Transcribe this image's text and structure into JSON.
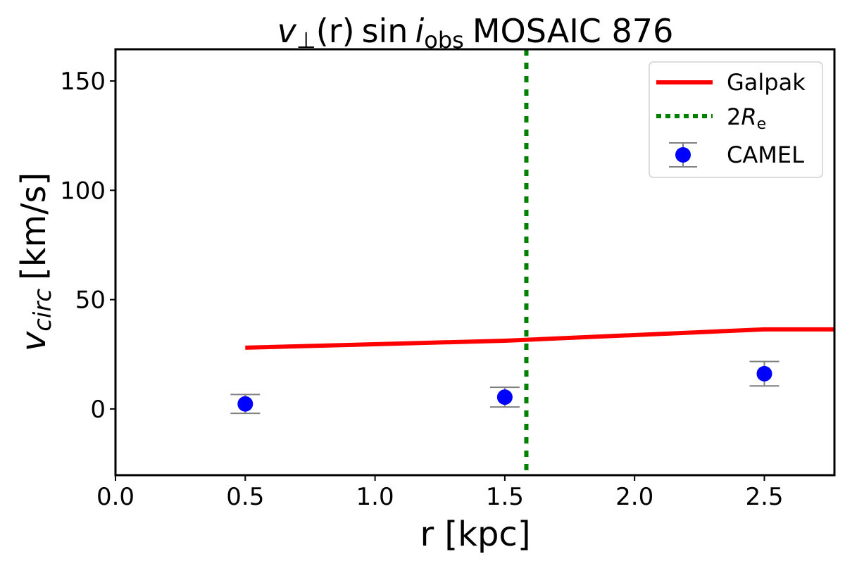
{
  "chart_data": {
    "type": "line",
    "title": "v⊥(r) sin i_obs MOSAIC 876",
    "title_parts": {
      "v": "v",
      "perp": "⊥",
      "r": "(r)",
      "sin": "sin",
      "i": "i",
      "obs": "obs",
      "rest": "MOSAIC 876"
    },
    "xlabel": "r [kpc]",
    "ylabel": "v_circ [km/s]",
    "ylabel_parts": {
      "v": "v",
      "sub": "circ",
      "unit": "[km/s]"
    },
    "xlim": [
      0.0,
      2.77
    ],
    "ylim": [
      -30.3,
      164.5
    ],
    "xticks": [
      0.0,
      0.5,
      1.0,
      1.5,
      2.0,
      2.5
    ],
    "xtick_labels": [
      "0.0",
      "0.5",
      "1.0",
      "1.5",
      "2.0",
      "2.5"
    ],
    "yticks": [
      0,
      50,
      100,
      150
    ],
    "ytick_labels": [
      "0",
      "50",
      "100",
      "150"
    ],
    "grid": false,
    "legend_position": "top-right",
    "series": [
      {
        "name": "Galpak",
        "kind": "line",
        "color": "#ff0000",
        "x": [
          0.5,
          1.5,
          2.5,
          2.77
        ],
        "y": [
          28.0,
          31.2,
          36.4,
          36.4
        ]
      },
      {
        "name": "2R_e",
        "name_parts": {
          "two": "2",
          "R": "R",
          "sub": "e"
        },
        "kind": "vline",
        "style": "dotted",
        "color": "#008000",
        "x": 1.583
      },
      {
        "name": "CAMEL",
        "kind": "errorbar",
        "color": "#0000ff",
        "errcolor": "#808080",
        "x": [
          0.5,
          1.5,
          2.5
        ],
        "y": [
          2.3,
          5.4,
          16.1
        ],
        "yerr": [
          4.3,
          4.5,
          5.6
        ]
      }
    ]
  }
}
